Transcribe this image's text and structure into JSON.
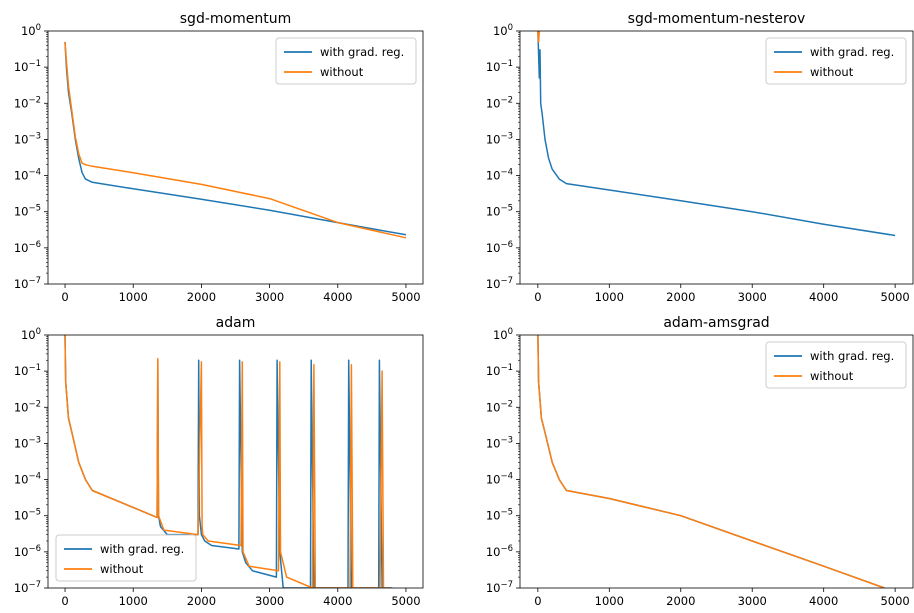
{
  "chart_data": [
    {
      "type": "line",
      "title": "sgd-momentum",
      "yscale": "log",
      "ylim": [
        1e-07,
        1
      ],
      "xlim": [
        -250,
        5250
      ],
      "xticks": [
        "0",
        "1000",
        "2000",
        "3000",
        "4000",
        "5000"
      ],
      "yticks": [
        "10^-7",
        "10^-6",
        "10^-5",
        "10^-4",
        "10^-3",
        "10^-2",
        "10^-1",
        "10^0"
      ],
      "legend": "top-right",
      "series": [
        {
          "name": "with grad. reg.",
          "color": "#1f77b4",
          "x": [
            0,
            20,
            50,
            100,
            150,
            200,
            250,
            300,
            400,
            1000,
            2000,
            3000,
            4000,
            5000
          ],
          "y": [
            0.5,
            0.1,
            0.02,
            0.005,
            0.001,
            0.0003,
            0.00012,
            8e-05,
            6.5e-05,
            4.3e-05,
            2.2e-05,
            1.1e-05,
            5e-06,
            2.3e-06
          ]
        },
        {
          "name": "without",
          "color": "#ff7f0e",
          "x": [
            0,
            20,
            50,
            100,
            150,
            200,
            250,
            300,
            400,
            1000,
            2000,
            3000,
            4000,
            5000
          ],
          "y": [
            0.5,
            0.15,
            0.03,
            0.006,
            0.0012,
            0.0004,
            0.00022,
            0.0002,
            0.00018,
            0.00012,
            5.7e-05,
            2.3e-05,
            5e-06,
            1.9e-06
          ]
        }
      ]
    },
    {
      "type": "line",
      "title": "sgd-momentum-nesterov",
      "yscale": "log",
      "ylim": [
        1e-07,
        1
      ],
      "xlim": [
        -250,
        5250
      ],
      "xticks": [
        "0",
        "1000",
        "2000",
        "3000",
        "4000",
        "5000"
      ],
      "yticks": [
        "10^-7",
        "10^-6",
        "10^-5",
        "10^-4",
        "10^-3",
        "10^-2",
        "10^-1",
        "10^0"
      ],
      "legend": "top-right",
      "series": [
        {
          "name": "with grad. reg.",
          "color": "#1f77b4",
          "x": [
            0,
            20,
            30,
            40,
            60,
            100,
            150,
            200,
            300,
            400,
            1000,
            2000,
            3000,
            4000,
            5000
          ],
          "y": [
            1,
            0.05,
            0.3,
            0.01,
            0.005,
            0.001,
            0.0003,
            0.00015,
            8e-05,
            6e-05,
            4e-05,
            2e-05,
            1e-05,
            4.5e-06,
            2.2e-06
          ]
        },
        {
          "name": "without",
          "color": "#ff7f0e",
          "x": [
            0,
            10,
            20
          ],
          "y": [
            1,
            0.5,
            1
          ]
        }
      ]
    },
    {
      "type": "line",
      "title": "adam",
      "yscale": "log",
      "ylim": [
        1e-07,
        1
      ],
      "xlim": [
        -250,
        5250
      ],
      "xticks": [
        "0",
        "1000",
        "2000",
        "3000",
        "4000",
        "5000"
      ],
      "yticks": [
        "10^-7",
        "10^-6",
        "10^-5",
        "10^-4",
        "10^-3",
        "10^-2",
        "10^-1",
        "10^0"
      ],
      "legend": "bottom-left",
      "series": [
        {
          "name": "with grad. reg.",
          "color": "#1f77b4",
          "x": [
            0,
            10,
            50,
            100,
            200,
            300,
            400,
            1350,
            1360,
            1370,
            1400,
            1500,
            1950,
            1960,
            1970,
            2000,
            2050,
            2150,
            2550,
            2560,
            2600,
            2650,
            2750,
            3100,
            3110,
            3150,
            3200,
            3300,
            3600,
            3610,
            3650,
            3700,
            3800,
            4150,
            4160,
            4200,
            4250,
            4350,
            4600,
            4610,
            4650,
            4700,
            4800
          ],
          "y": [
            1,
            0.05,
            0.005,
            0.002,
            0.0003,
            0.0001,
            5e-05,
            9e-06,
            0.2,
            1e-05,
            5e-06,
            3e-06,
            3e-06,
            0.2,
            1e-05,
            3e-06,
            2e-06,
            1.5e-06,
            1.2e-06,
            0.2,
            1e-06,
            5e-07,
            3e-07,
            2e-07,
            0.2,
            1e-06,
            1e-07,
            1e-07,
            1e-07,
            0.2,
            1e-07,
            1e-07,
            1e-07,
            1e-07,
            0.2,
            1e-07,
            1e-07,
            1e-07,
            1e-07,
            0.2,
            1e-07,
            1e-07,
            1e-07
          ]
        },
        {
          "name": "without",
          "color": "#ff7f0e",
          "x": [
            0,
            10,
            50,
            100,
            200,
            300,
            400,
            1350,
            1360,
            1370,
            1450,
            1950,
            2000,
            2010,
            2020,
            2100,
            2580,
            2600,
            2610,
            2700,
            3130,
            3150,
            3160,
            3250,
            3630,
            3650,
            3670,
            3750,
            4180,
            4200,
            4220,
            4300,
            4620,
            4650,
            4670,
            4750
          ],
          "y": [
            1,
            0.05,
            0.005,
            0.002,
            0.0003,
            0.0001,
            5e-05,
            9e-06,
            0.22,
            1e-05,
            4e-06,
            3e-06,
            0.18,
            5e-06,
            3e-06,
            2e-06,
            1.5e-06,
            0.18,
            1e-06,
            4e-07,
            3e-07,
            0.18,
            1e-06,
            2e-07,
            1e-07,
            0.15,
            1e-07,
            1e-07,
            1e-07,
            0.15,
            1e-07,
            1e-07,
            1e-07,
            0.1,
            1e-07,
            1e-07
          ]
        }
      ]
    },
    {
      "type": "line",
      "title": "adam-amsgrad",
      "yscale": "log",
      "ylim": [
        1e-07,
        1
      ],
      "xlim": [
        -250,
        5250
      ],
      "xticks": [
        "0",
        "1000",
        "2000",
        "3000",
        "4000",
        "5000"
      ],
      "yticks": [
        "10^-7",
        "10^-6",
        "10^-5",
        "10^-4",
        "10^-3",
        "10^-2",
        "10^-1",
        "10^0"
      ],
      "legend": "top-right",
      "series": [
        {
          "name": "with grad. reg.",
          "color": "#1f77b4",
          "x": [
            0,
            10,
            50,
            100,
            200,
            300,
            400,
            1000,
            2000,
            3000,
            4000,
            4850
          ],
          "y": [
            1,
            0.05,
            0.005,
            0.002,
            0.0003,
            0.0001,
            5e-05,
            3e-05,
            1e-05,
            2e-06,
            4e-07,
            1e-07
          ]
        },
        {
          "name": "without",
          "color": "#ff7f0e",
          "x": [
            0,
            10,
            50,
            100,
            200,
            300,
            400,
            1000,
            2000,
            3000,
            4000,
            4850
          ],
          "y": [
            1,
            0.05,
            0.005,
            0.002,
            0.0003,
            0.0001,
            5e-05,
            3e-05,
            1e-05,
            2e-06,
            4e-07,
            1e-07
          ]
        }
      ]
    }
  ]
}
